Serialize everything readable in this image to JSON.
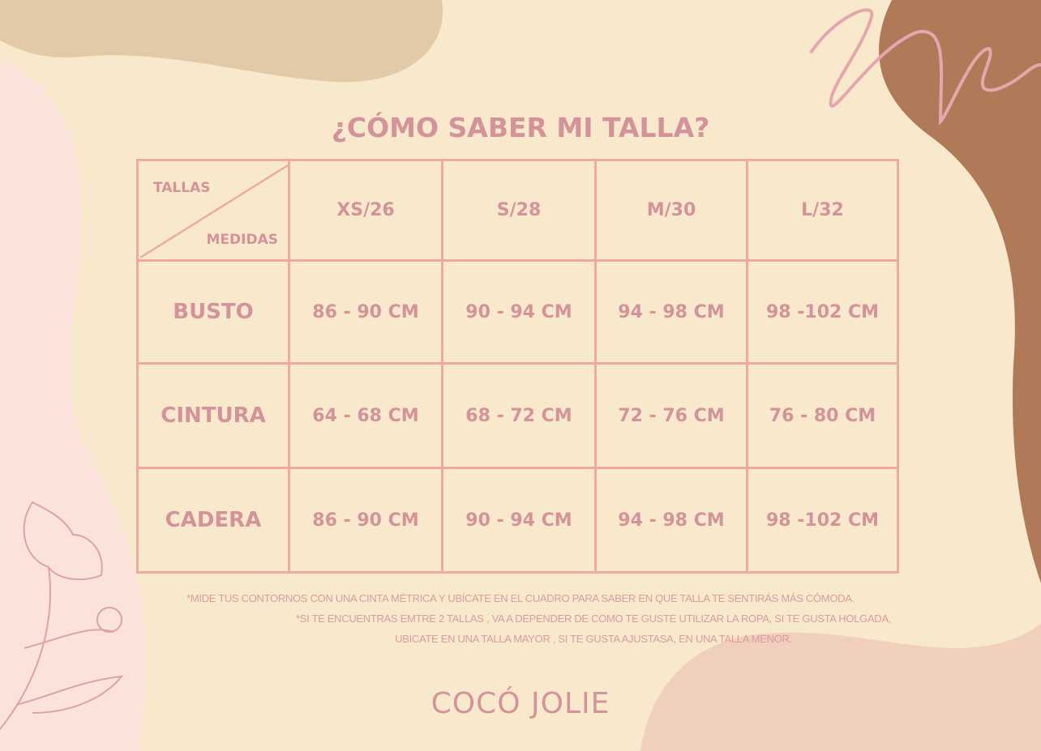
{
  "title": "¿CÓMO SABER MI TALLA?",
  "table": {
    "corner_top": "TALLAS",
    "corner_bottom": "MEDIDAS",
    "sizes": [
      "XS/26",
      "S/28",
      "M/30",
      "L/32"
    ],
    "rows": [
      {
        "label": "BUSTO",
        "values": [
          "86 - 90 CM",
          "90 - 94 CM",
          "94 - 98 CM",
          "98 -102 CM"
        ]
      },
      {
        "label": "CINTURA",
        "values": [
          "64 - 68 CM",
          "68 - 72 CM",
          "72 - 76 CM",
          "76 - 80 CM"
        ]
      },
      {
        "label": "CADERA",
        "values": [
          "86 - 90 CM",
          "90 - 94 CM",
          "94 - 98 CM",
          "98 -102 CM"
        ]
      }
    ]
  },
  "notes": [
    "*MIDE TUS CONTORNOS CON UNA CINTA MÉTRICA Y UBÍCATE EN EL CUADRO PARA SABER EN QUE TALLA TE SENTIRÁS MÁS CÓMODA.",
    "*SI TE ENCUENTRAS EMTRE 2 TALLAS , VA A DEPENDER DE COMO TE GUSTE UTILIZAR LA ROPA, SI TE GUSTA HOLGADA,",
    "UBICATE EN UNA TALLA MAYOR , SI TE GUSTA AJUSTASA, EN UNA TALLA MENOR."
  ],
  "brand": "COCÓ JOLIE",
  "colors": {
    "background": "#f8e8cc",
    "text": "#d4939a",
    "grid": "#eeaaa2",
    "tan": "#e2c9a8",
    "brown": "#b07a58",
    "pink": "#fbe3dc",
    "peach": "#f0cfbd"
  }
}
